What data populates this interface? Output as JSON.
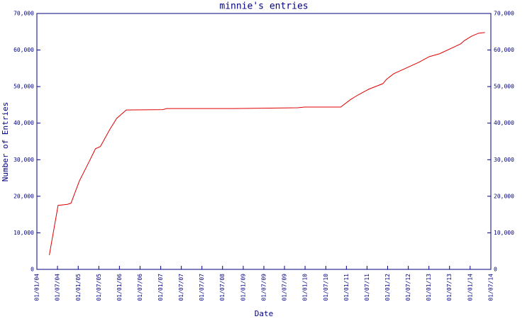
{
  "chart_data": {
    "type": "line",
    "title": "minnie's entries",
    "x_label": "Date",
    "y_label": "Number of Entries",
    "x": [
      "2004-04-15",
      "2004-06-28",
      "2004-09-15",
      "2004-10-15",
      "2004-12-25",
      "2005-03-10",
      "2005-05-10",
      "2005-06-20",
      "2005-09-10",
      "2005-11-05",
      "2006-01-25",
      "2006-12-01",
      "2007-01-01",
      "2008-07-20",
      "2010-01-12",
      "2010-03-12",
      "2011-01-10",
      "2011-04-05",
      "2011-06-05",
      "2011-09-05",
      "2012-01-01",
      "2012-02-01",
      "2012-04-01",
      "2012-10-28",
      "2013-01-28",
      "2013-04-25",
      "2013-10-20",
      "2013-11-20",
      "2014-01-20",
      "2014-03-20",
      "2014-05-12"
    ],
    "series": [
      {
        "color": "#e00000",
        "values": [
          3900,
          17500,
          17800,
          18100,
          24200,
          29000,
          33000,
          33600,
          38400,
          41300,
          43600,
          43700,
          44000,
          44000,
          44200,
          44400,
          44400,
          46500,
          47700,
          49300,
          50800,
          52000,
          53500,
          56600,
          58200,
          59000,
          61700,
          62600,
          63800,
          64600,
          64800
        ]
      }
    ],
    "xlim": [
      "2004-01-01",
      "2014-07-01"
    ],
    "xticks": [
      {
        "value": "2004-01-01",
        "label": "01/01/04"
      },
      {
        "value": "2004-06-23",
        "label": "01/07/04"
      },
      {
        "value": "2004-12-15",
        "label": "01/01/05"
      },
      {
        "value": "2005-06-07",
        "label": "01/07/05"
      },
      {
        "value": "2005-11-28",
        "label": "01/01/06"
      },
      {
        "value": "2006-05-21",
        "label": "01/07/06"
      },
      {
        "value": "2006-11-12",
        "label": "01/01/07"
      },
      {
        "value": "2007-05-05",
        "label": "01/07/07"
      },
      {
        "value": "2007-10-26",
        "label": "01/07/07"
      },
      {
        "value": "2008-04-17",
        "label": "01/07/08"
      },
      {
        "value": "2008-10-09",
        "label": "01/01/09"
      },
      {
        "value": "2009-04-01",
        "label": "01/07/09"
      },
      {
        "value": "2009-09-22",
        "label": "01/07/09"
      },
      {
        "value": "2010-03-15",
        "label": "01/01/10"
      },
      {
        "value": "2010-09-06",
        "label": "01/07/10"
      },
      {
        "value": "2011-02-27",
        "label": "01/01/11"
      },
      {
        "value": "2011-08-20",
        "label": "01/07/11"
      },
      {
        "value": "2012-02-10",
        "label": "01/01/12"
      },
      {
        "value": "2012-08-03",
        "label": "01/07/12"
      },
      {
        "value": "2013-01-24",
        "label": "01/01/13"
      },
      {
        "value": "2013-07-17",
        "label": "01/07/13"
      },
      {
        "value": "2014-01-07",
        "label": "01/01/14"
      },
      {
        "value": "2014-07-01",
        "label": "01/07/14"
      }
    ],
    "ylim": [
      0,
      70000
    ],
    "yticks": [
      0,
      {
        "value": 10000,
        "label": "10,000"
      },
      {
        "value": 20000,
        "label": "20,000"
      },
      {
        "value": 30000,
        "label": "30,000"
      },
      {
        "value": 40000,
        "label": "40,000"
      },
      {
        "value": 50000,
        "label": "50,000"
      },
      {
        "value": 60000,
        "label": "60,000"
      },
      {
        "value": 70000,
        "label": "70,000"
      }
    ],
    "y2lim": [
      0,
      70000
    ],
    "y2ticks": [
      0,
      {
        "value": 10000,
        "label": "10,000"
      },
      {
        "value": 20000,
        "label": "20,000"
      },
      {
        "value": 30000,
        "label": "30,000"
      },
      {
        "value": 40000,
        "label": "40,000"
      },
      {
        "value": 50000,
        "label": "50,000"
      },
      {
        "value": 60000,
        "label": "60,000"
      },
      {
        "value": 70000,
        "label": "70,000"
      }
    ],
    "grid": false
  }
}
